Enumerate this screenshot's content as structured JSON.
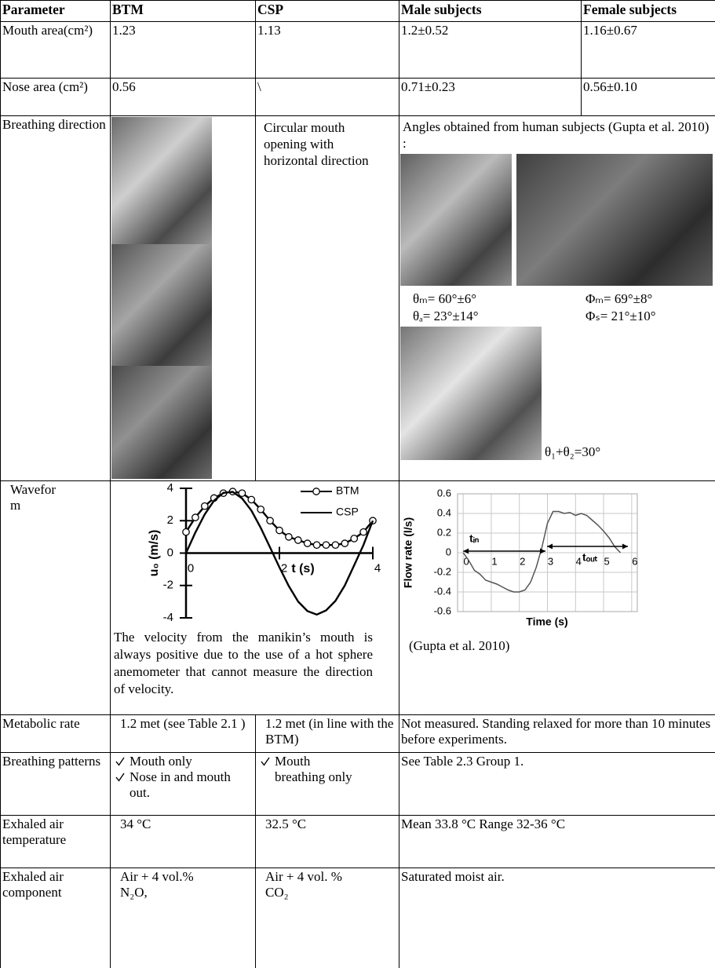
{
  "table": {
    "header": [
      "Parameter",
      "BTM",
      "CSP",
      "Male subjects",
      "Female subjects"
    ],
    "rows": [
      {
        "parameter": "Mouth area(cm²)",
        "btm": "1.23",
        "csp": "1.13",
        "male": "1.2±0.52",
        "female": "1.16±0.67"
      },
      {
        "parameter": "Nose area (cm²)",
        "btm": "0.56",
        "csp": "\\",
        "male": "0.71±0.23",
        "female": "0.56±0.10"
      },
      {
        "parameter": "Breathing direction",
        "csp": "Circular mouth opening with horizontal direction",
        "subjects": "Angles obtained from human subjects (Gupta et al. 2010) :",
        "angles": [
          "θₘ= 60°±6°",
          "Φₘ= 69°±8°",
          "θₐ= 23°±14°",
          "Φₛ= 21°±10°"
        ],
        "angle_note": "θ₁+θ₂=30°"
      },
      {
        "parameter": "Waveform",
        "btm_note": "The velocity from the manikin’s mouth is always positive due to the use of a hot sphere anemometer that cannot measure the direction of velocity.",
        "subjects_note": "(Gupta et al. 2010)"
      },
      {
        "parameter": "Metabolic rate",
        "btm": "1.2 met (see Table 2.1 )",
        "csp": "1.2 met (in line with the BTM)",
        "subjects": "Not measured. Standing relaxed for more than 10 minutes before experiments."
      },
      {
        "parameter": "Breathing patterns",
        "btm": [
          "Mouth only",
          "Nose in and mouth out."
        ],
        "csp": [
          "Mouth breathing only"
        ],
        "subjects": "See Table 2.3 Group 1."
      },
      {
        "parameter": "Exhaled air temperature",
        "btm": "34 °C",
        "csp": "32.5 °C",
        "subjects": "Mean 33.8 °C Range 32-36 °C"
      },
      {
        "parameter": "Exhaled air component",
        "btm": "Air + 4 vol.% N₂O,",
        "csp": "Air + 4 vol. % CO₂",
        "subjects": "Saturated moist air."
      }
    ]
  },
  "chart_data": [
    {
      "type": "line",
      "xlabel": "t (s)",
      "ylabel": "u₀ (m/s)",
      "grid": false,
      "legend": "top-right",
      "x": [
        0,
        0.2,
        0.4,
        0.6,
        0.8,
        1.0,
        1.2,
        1.4,
        1.6,
        1.8,
        2.0,
        2.2,
        2.4,
        2.6,
        2.8,
        3.0,
        3.2,
        3.4,
        3.6,
        3.8,
        4.0
      ],
      "series": [
        {
          "name": "BTM",
          "color": "#000000",
          "marker": "circle",
          "values": [
            1.3,
            2.2,
            2.9,
            3.4,
            3.7,
            3.8,
            3.7,
            3.3,
            2.7,
            2.0,
            1.4,
            1.0,
            0.8,
            0.6,
            0.5,
            0.5,
            0.5,
            0.6,
            0.9,
            1.3,
            2.0
          ]
        },
        {
          "name": "CSP",
          "color": "#000000",
          "values": [
            0,
            1.27,
            2.39,
            3.24,
            3.72,
            3.78,
            3.38,
            2.63,
            1.56,
            0.35,
            -0.88,
            -2.03,
            -2.99,
            -3.58,
            -3.8,
            -3.54,
            -2.95,
            -2.0,
            -0.76,
            0.5,
            2.0
          ]
        }
      ],
      "xlim": [
        0,
        4
      ],
      "ylim": [
        -4,
        4
      ],
      "xticks": [
        0,
        2,
        4
      ],
      "yticks": [
        -4,
        -2,
        0,
        2,
        4
      ]
    },
    {
      "type": "line",
      "xlabel": "Time (s)",
      "ylabel": "Flow rate (l/s)",
      "grid": true,
      "annotations": [
        "tᵢₙ",
        "tₒᵤₜ"
      ],
      "x": [
        0,
        0.2,
        0.4,
        0.6,
        0.8,
        1.0,
        1.2,
        1.4,
        1.6,
        1.8,
        2.0,
        2.2,
        2.4,
        2.6,
        2.8,
        3.0,
        3.2,
        3.4,
        3.6,
        3.8,
        4.0,
        4.2,
        4.4,
        4.6,
        4.8,
        5.0,
        5.2,
        5.4,
        5.6
      ],
      "values": [
        0,
        -0.08,
        -0.18,
        -0.22,
        -0.28,
        -0.3,
        -0.32,
        -0.35,
        -0.38,
        -0.4,
        -0.4,
        -0.38,
        -0.3,
        -0.15,
        0.05,
        0.3,
        0.42,
        0.42,
        0.4,
        0.41,
        0.38,
        0.4,
        0.38,
        0.33,
        0.28,
        0.22,
        0.15,
        0.06,
        0
      ],
      "color": "#555555",
      "xlim": [
        -0.2,
        6.2
      ],
      "ylim": [
        -0.6,
        0.6
      ],
      "xticks": [
        0,
        1,
        2,
        3,
        4,
        5,
        6
      ],
      "yticks": [
        0.6,
        0.4,
        0.2,
        0,
        -0.2,
        -0.4,
        -0.6
      ]
    }
  ]
}
